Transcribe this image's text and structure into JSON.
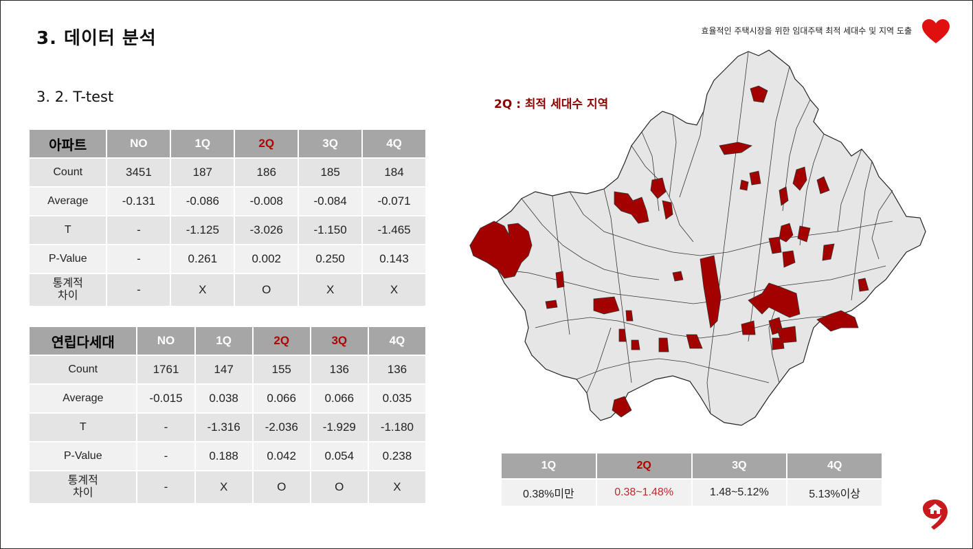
{
  "slide": {
    "title": "3. 데이터 분석",
    "subtitle": "3. 2. T-test",
    "header_text": "효율적인 주택시장을 위한 임대주택 최적 세대수 및 지역 도출"
  },
  "table_apartment": {
    "headers": [
      "아파트",
      "NO",
      "1Q",
      "2Q",
      "3Q",
      "4Q"
    ],
    "rows": [
      [
        "Count",
        "3451",
        "187",
        "186",
        "185",
        "184"
      ],
      [
        "Average",
        "-0.131",
        "-0.086",
        "-0.008",
        "-0.084",
        "-0.071"
      ],
      [
        "T",
        "-",
        "-1.125",
        "-3.026",
        "-1.150",
        "-1.465"
      ],
      [
        "P-Value",
        "-",
        "0.261",
        "0.002",
        "0.250",
        "0.143"
      ],
      [
        "통계적\n차이",
        "-",
        "X",
        "O",
        "X",
        "X"
      ]
    ]
  },
  "table_villa": {
    "headers": [
      "연립다세대",
      "NO",
      "1Q",
      "2Q",
      "3Q",
      "4Q"
    ],
    "rows": [
      [
        "Count",
        "1761",
        "147",
        "155",
        "136",
        "136"
      ],
      [
        "Average",
        "-0.015",
        "0.038",
        "0.066",
        "0.066",
        "0.035"
      ],
      [
        "T",
        "-",
        "-1.316",
        "-2.036",
        "-1.929",
        "-1.180"
      ],
      [
        "P-Value",
        "-",
        "0.188",
        "0.042",
        "0.054",
        "0.238"
      ],
      [
        "통계적\n차이",
        "-",
        "X",
        "O",
        "O",
        "X"
      ]
    ]
  },
  "map": {
    "label": "2Q : 최적 세대수 지역",
    "highlight_color": "#a30000",
    "base_color": "#e6e6e6"
  },
  "legend": {
    "headers": [
      "1Q",
      "2Q",
      "3Q",
      "4Q"
    ],
    "values": [
      "0.38%미만",
      "0.38~1.48%",
      "1.48~5.12%",
      "5.13%이상"
    ]
  },
  "colors": {
    "accent_red": "#b00000",
    "header_gray": "#a6a6a6",
    "heart": "#e01010"
  },
  "icons": [
    "heart-icon",
    "home-logo-icon"
  ]
}
